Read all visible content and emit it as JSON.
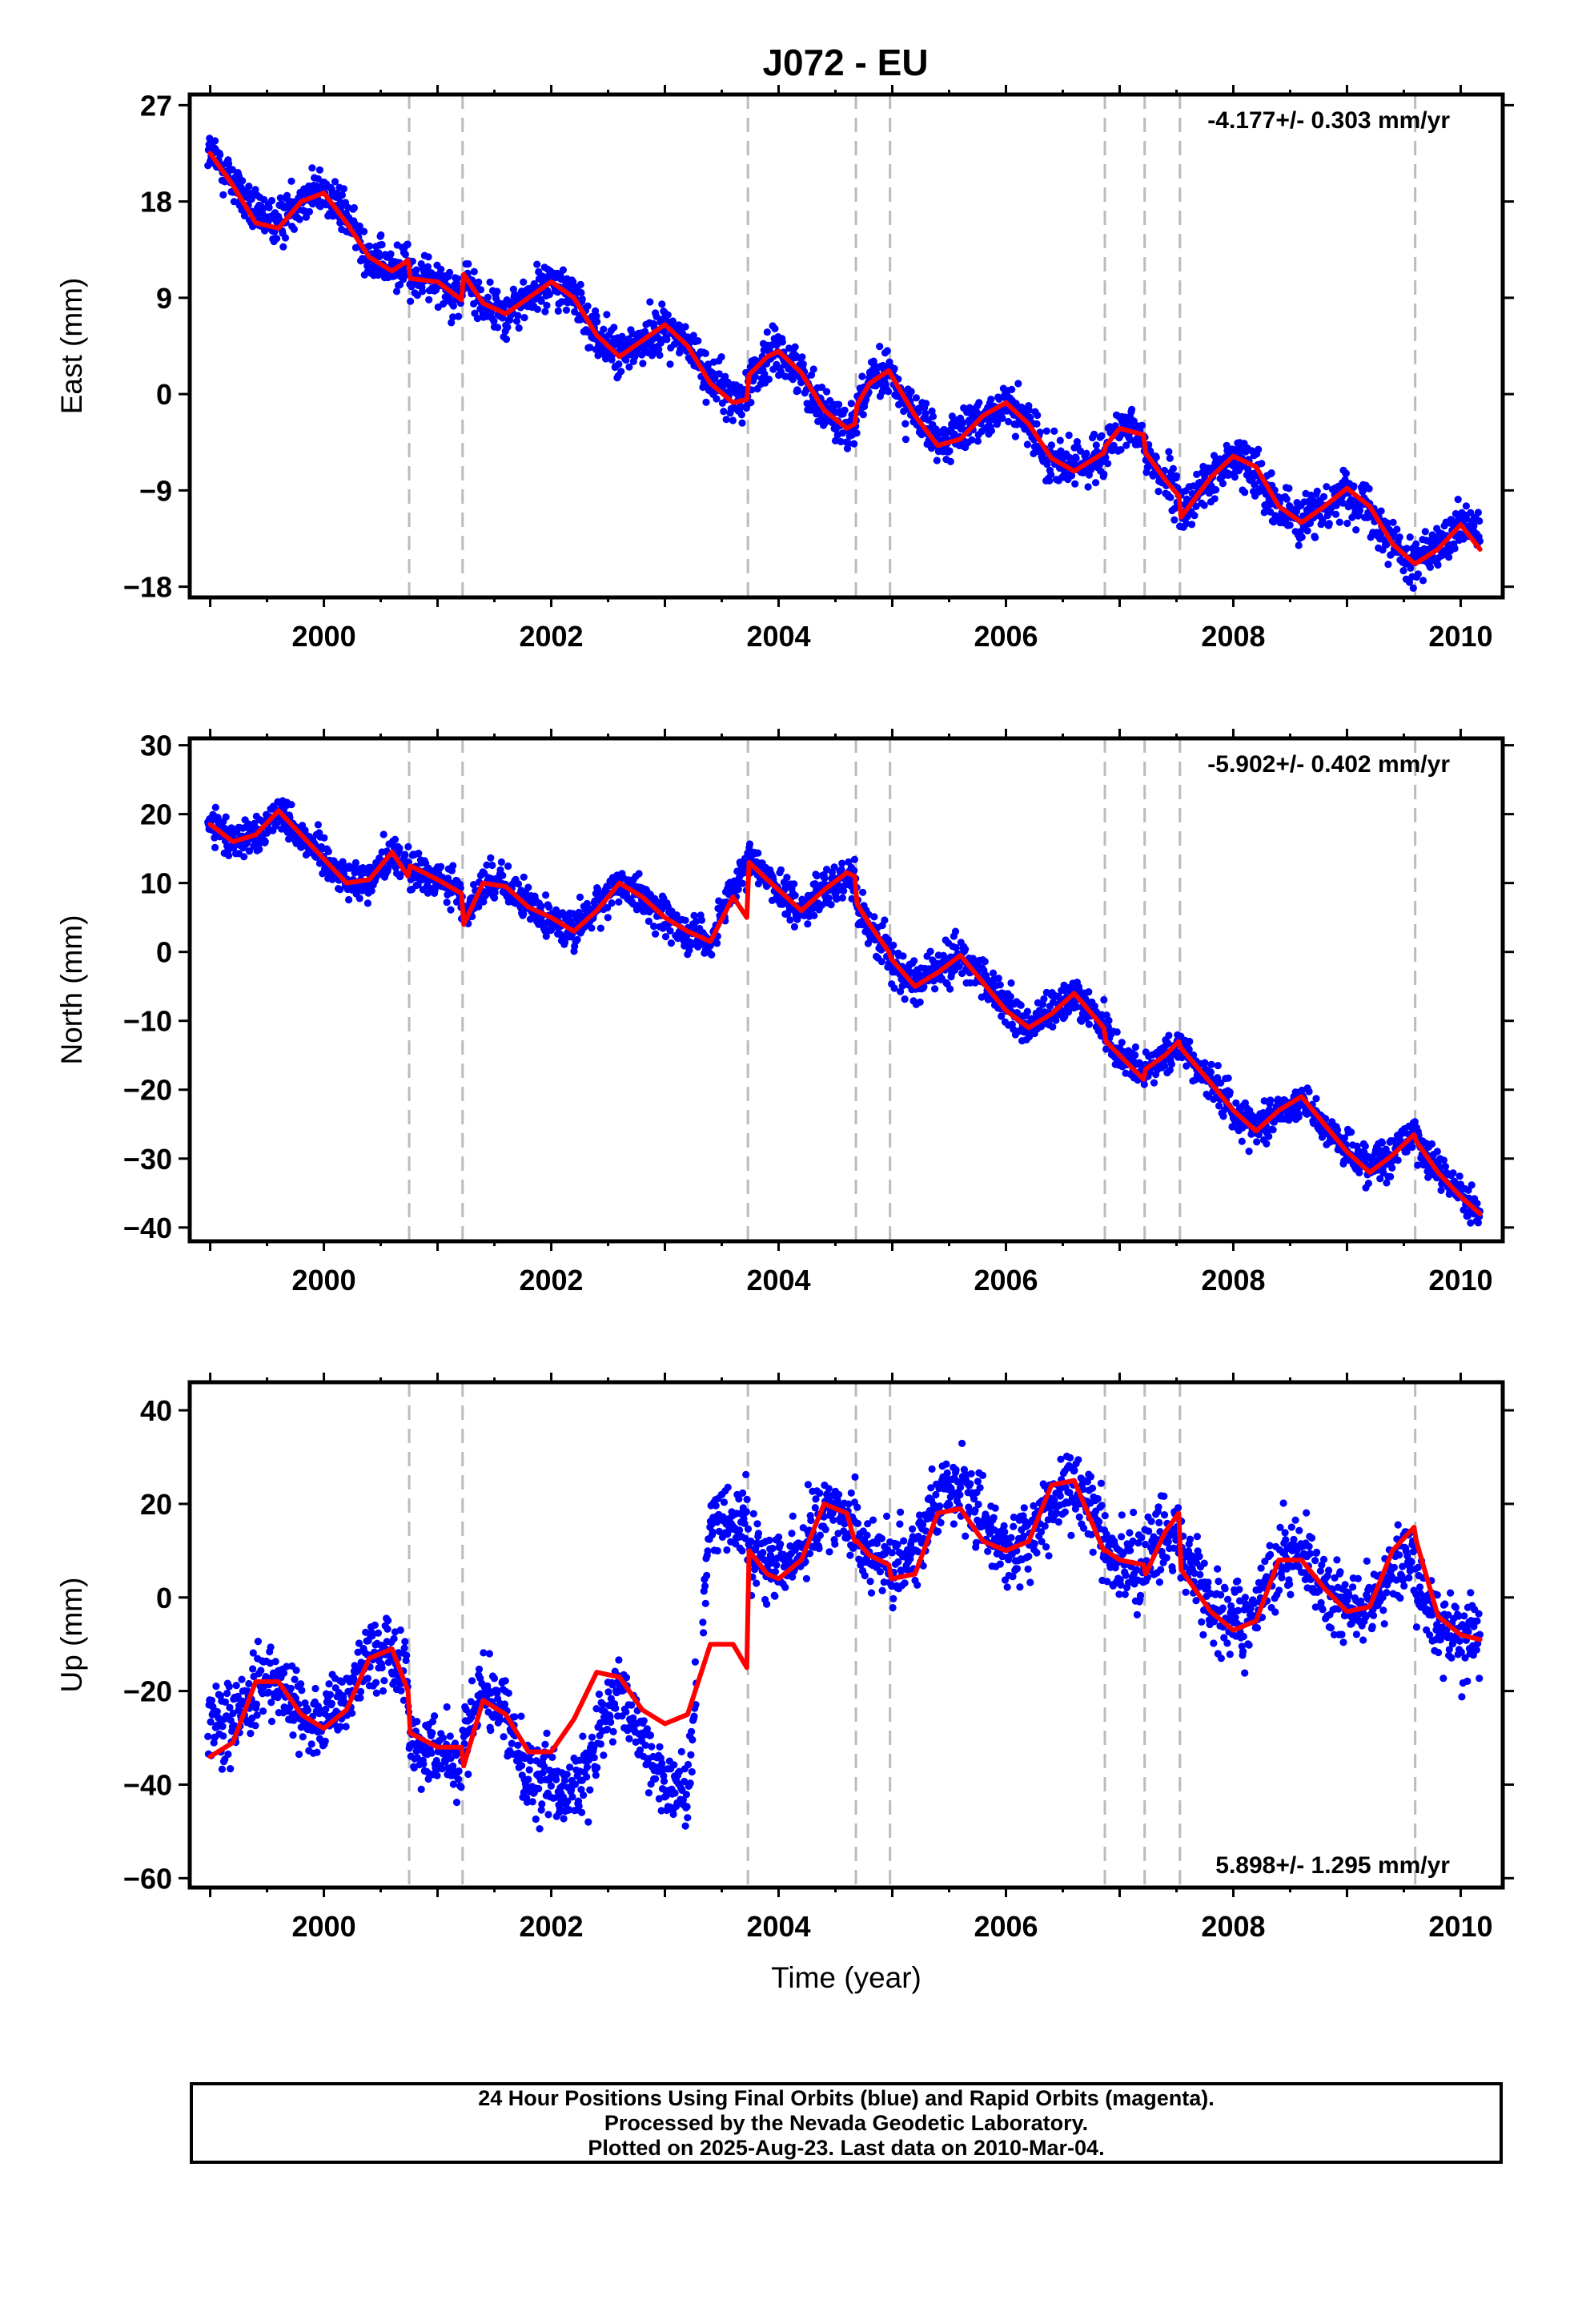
{
  "title": "J072 - EU",
  "colors": {
    "observations": "#0000ff",
    "model": "#ff0000",
    "steps": "#bbbbbb",
    "frame": "#000000"
  },
  "x_label": "Time (year)",
  "chart_data": [
    {
      "type": "scatter",
      "component": "East",
      "ylabel": "East (mm)",
      "rate_label": "-4.177+/- 0.303 mm/yr",
      "rate_position": "top-right",
      "xlim": [
        1998.82,
        2010.37
      ],
      "ylim": [
        -19,
        28
      ],
      "xticks": [
        2000,
        2002,
        2004,
        2006,
        2008,
        2010
      ],
      "yticks": [
        27,
        18,
        9,
        0,
        -9,
        -18
      ],
      "offset_lines": [
        2000.75,
        2001.22,
        2003.73,
        2004.68,
        2004.98,
        2006.87,
        2007.22,
        2007.53,
        2009.6
      ],
      "series": [
        {
          "name": "observations",
          "color": "#0000ff",
          "x": [
            1999.0,
            1999.2,
            1999.4,
            1999.6,
            1999.8,
            2000.0,
            2000.2,
            2000.4,
            2000.6,
            2000.74,
            2000.76,
            2001.0,
            2001.21,
            2001.23,
            2001.4,
            2001.6,
            2001.8,
            2002.0,
            2002.2,
            2002.4,
            2002.6,
            2002.8,
            2003.0,
            2003.2,
            2003.4,
            2003.6,
            2003.72,
            2003.74,
            2003.9,
            2004.0,
            2004.2,
            2004.4,
            2004.6,
            2004.67,
            2004.69,
            2004.8,
            2004.97,
            2004.99,
            2005.2,
            2005.4,
            2005.6,
            2005.8,
            2006.0,
            2006.2,
            2006.4,
            2006.6,
            2006.86,
            2006.88,
            2007.0,
            2007.21,
            2007.23,
            2007.4,
            2007.52,
            2007.54,
            2007.8,
            2008.0,
            2008.2,
            2008.4,
            2008.6,
            2008.8,
            2009.0,
            2009.2,
            2009.4,
            2009.59,
            2009.61,
            2009.8,
            2010.0,
            2010.17
          ],
          "y": [
            22.5,
            20.0,
            16.5,
            16.0,
            18.5,
            19.0,
            16.5,
            13.0,
            11.5,
            12.5,
            10.5,
            11.0,
            9.0,
            11.0,
            8.5,
            7.5,
            9.0,
            10.5,
            9.0,
            5.5,
            3.5,
            5.0,
            6.5,
            4.5,
            1.5,
            -0.5,
            0.0,
            1.5,
            3.5,
            4.0,
            2.0,
            -1.5,
            -3.0,
            -2.5,
            -1.0,
            1.0,
            2.0,
            1.5,
            -2.0,
            -4.5,
            -4.0,
            -2.0,
            -1.0,
            -3.0,
            -6.0,
            -7.0,
            -5.5,
            -5.0,
            -3.5,
            -4.0,
            -5.5,
            -8.0,
            -10.0,
            -11.0,
            -8.0,
            -6.0,
            -7.0,
            -10.5,
            -12.0,
            -10.5,
            -9.0,
            -10.5,
            -14.0,
            -15.5,
            -15.5,
            -14.5,
            -12.5,
            -13.0
          ]
        },
        {
          "name": "model",
          "color": "#ff0000",
          "x": [
            1999.0,
            1999.2,
            1999.4,
            1999.6,
            1999.8,
            2000.0,
            2000.2,
            2000.4,
            2000.6,
            2000.74,
            2000.76,
            2001.0,
            2001.21,
            2001.23,
            2001.4,
            2001.6,
            2001.8,
            2002.0,
            2002.2,
            2002.4,
            2002.6,
            2002.8,
            2003.0,
            2003.2,
            2003.4,
            2003.6,
            2003.72,
            2003.74,
            2003.9,
            2004.0,
            2004.2,
            2004.4,
            2004.6,
            2004.67,
            2004.69,
            2004.8,
            2004.97,
            2004.99,
            2005.2,
            2005.4,
            2005.6,
            2005.8,
            2006.0,
            2006.2,
            2006.4,
            2006.6,
            2006.86,
            2006.88,
            2007.0,
            2007.21,
            2007.23,
            2007.4,
            2007.52,
            2007.54,
            2007.8,
            2008.0,
            2008.2,
            2008.4,
            2008.6,
            2008.8,
            2009.0,
            2009.2,
            2009.4,
            2009.59,
            2009.61,
            2009.8,
            2010.0,
            2010.17
          ],
          "y": [
            22.5,
            19.5,
            16.0,
            15.5,
            18.0,
            18.8,
            16.0,
            12.8,
            11.5,
            12.5,
            10.8,
            10.5,
            8.8,
            11.2,
            8.5,
            7.5,
            9.0,
            10.5,
            9.0,
            5.5,
            3.5,
            5.0,
            6.5,
            4.5,
            1.0,
            -0.8,
            -0.5,
            1.8,
            3.5,
            4.0,
            2.0,
            -1.5,
            -3.2,
            -2.8,
            -1.0,
            1.0,
            2.2,
            1.8,
            -2.0,
            -4.8,
            -4.2,
            -2.0,
            -0.8,
            -2.8,
            -6.0,
            -7.2,
            -5.5,
            -4.8,
            -3.2,
            -3.8,
            -5.5,
            -8.0,
            -9.5,
            -11.5,
            -7.8,
            -5.8,
            -6.8,
            -10.5,
            -12.0,
            -10.5,
            -8.8,
            -10.5,
            -14.0,
            -15.8,
            -15.8,
            -14.5,
            -12.2,
            -14.5
          ]
        }
      ]
    },
    {
      "type": "scatter",
      "component": "North",
      "ylabel": "North (mm)",
      "rate_label": "-5.902+/- 0.402 mm/yr",
      "rate_position": "top-right",
      "xlim": [
        1998.82,
        2010.37
      ],
      "ylim": [
        -42,
        31
      ],
      "xticks": [
        2000,
        2002,
        2004,
        2006,
        2008,
        2010
      ],
      "yticks": [
        30,
        20,
        10,
        0,
        -10,
        -20,
        -30,
        -40
      ],
      "offset_lines": [
        2000.75,
        2001.22,
        2003.73,
        2004.68,
        2004.98,
        2006.87,
        2007.22,
        2007.53,
        2009.6
      ],
      "series": [
        {
          "name": "observations",
          "color": "#0000ff",
          "x": [
            1999.0,
            1999.2,
            1999.4,
            1999.6,
            1999.8,
            2000.0,
            2000.2,
            2000.4,
            2000.6,
            2000.74,
            2000.76,
            2001.0,
            2001.21,
            2001.23,
            2001.4,
            2001.6,
            2001.8,
            2002.0,
            2002.2,
            2002.4,
            2002.6,
            2002.8,
            2003.0,
            2003.2,
            2003.4,
            2003.6,
            2003.72,
            2003.74,
            2003.9,
            2004.0,
            2004.2,
            2004.4,
            2004.6,
            2004.67,
            2004.69,
            2004.8,
            2004.97,
            2004.99,
            2005.2,
            2005.4,
            2005.6,
            2005.8,
            2006.0,
            2006.2,
            2006.4,
            2006.6,
            2006.86,
            2006.88,
            2007.0,
            2007.21,
            2007.23,
            2007.4,
            2007.52,
            2007.54,
            2007.8,
            2008.0,
            2008.2,
            2008.4,
            2008.6,
            2008.8,
            2009.0,
            2009.2,
            2009.4,
            2009.59,
            2009.61,
            2009.8,
            2010.0,
            2010.17
          ],
          "y": [
            18.5,
            16.0,
            17.0,
            20.5,
            17.0,
            14.0,
            10.5,
            10.5,
            14.5,
            12.5,
            11.5,
            10.5,
            8.5,
            5.0,
            10.0,
            9.5,
            6.5,
            5.0,
            3.0,
            6.5,
            10.0,
            8.0,
            5.0,
            3.0,
            1.5,
            9.0,
            12.0,
            13.5,
            11.0,
            9.0,
            6.0,
            9.0,
            11.0,
            11.5,
            7.0,
            3.5,
            0.0,
            -1.5,
            -4.5,
            -2.5,
            -0.5,
            -4.0,
            -8.0,
            -11.0,
            -9.0,
            -6.0,
            -10.5,
            -12.0,
            -14.5,
            -18.0,
            -17.0,
            -15.0,
            -13.5,
            -14.0,
            -18.5,
            -23.0,
            -25.5,
            -23.0,
            -21.5,
            -25.0,
            -28.5,
            -31.0,
            -29.0,
            -26.5,
            -27.5,
            -31.5,
            -35.0,
            -38.5
          ]
        },
        {
          "name": "model",
          "color": "#ff0000",
          "x": [
            1999.0,
            1999.2,
            1999.4,
            1999.6,
            1999.8,
            2000.0,
            2000.2,
            2000.4,
            2000.6,
            2000.74,
            2000.76,
            2001.0,
            2001.21,
            2001.23,
            2001.4,
            2001.6,
            2001.8,
            2002.0,
            2002.2,
            2002.4,
            2002.6,
            2002.8,
            2003.0,
            2003.2,
            2003.4,
            2003.6,
            2003.72,
            2003.74,
            2003.9,
            2004.0,
            2004.2,
            2004.4,
            2004.6,
            2004.67,
            2004.69,
            2004.8,
            2004.97,
            2004.99,
            2005.2,
            2005.4,
            2005.6,
            2005.8,
            2006.0,
            2006.2,
            2006.4,
            2006.6,
            2006.86,
            2006.88,
            2007.0,
            2007.21,
            2007.23,
            2007.4,
            2007.52,
            2007.54,
            2007.8,
            2008.0,
            2008.2,
            2008.4,
            2008.6,
            2008.8,
            2009.0,
            2009.2,
            2009.4,
            2009.59,
            2009.61,
            2009.8,
            2010.0,
            2010.17
          ],
          "y": [
            18.5,
            16.0,
            17.0,
            20.5,
            17.0,
            13.5,
            10.0,
            10.5,
            14.5,
            11.0,
            12.5,
            10.5,
            8.5,
            4.0,
            10.0,
            9.5,
            6.5,
            5.0,
            3.0,
            6.0,
            10.0,
            8.0,
            5.0,
            3.0,
            1.5,
            8.0,
            5.0,
            13.0,
            10.5,
            9.0,
            6.0,
            9.0,
            11.5,
            11.0,
            7.0,
            4.0,
            0.0,
            -1.0,
            -5.0,
            -3.0,
            -0.5,
            -4.5,
            -8.5,
            -11.0,
            -9.0,
            -6.0,
            -11.0,
            -13.0,
            -15.0,
            -18.5,
            -17.0,
            -15.0,
            -13.0,
            -14.0,
            -19.0,
            -23.0,
            -26.0,
            -23.0,
            -21.0,
            -25.0,
            -29.0,
            -32.0,
            -29.5,
            -26.5,
            -27.5,
            -32.0,
            -35.5,
            -38.0
          ]
        }
      ]
    },
    {
      "type": "scatter",
      "component": "Up",
      "ylabel": "Up (mm)",
      "rate_label": "5.898+/- 1.295 mm/yr",
      "rate_position": "bottom-right",
      "xlim": [
        1998.82,
        2010.37
      ],
      "ylim": [
        -62,
        46
      ],
      "xticks": [
        2000,
        2002,
        2004,
        2006,
        2008,
        2010
      ],
      "yticks": [
        40,
        20,
        0,
        -20,
        -40,
        -60
      ],
      "offset_lines": [
        2000.75,
        2001.22,
        2003.73,
        2004.68,
        2004.98,
        2006.87,
        2007.22,
        2007.53,
        2009.6
      ],
      "series": [
        {
          "name": "observations",
          "color": "#0000ff",
          "x": [
            1999.0,
            1999.2,
            1999.4,
            1999.6,
            1999.8,
            2000.0,
            2000.2,
            2000.4,
            2000.6,
            2000.74,
            2000.76,
            2001.0,
            2001.21,
            2001.23,
            2001.4,
            2001.6,
            2001.8,
            2002.0,
            2002.2,
            2002.4,
            2002.6,
            2002.8,
            2003.0,
            2003.2,
            2003.4,
            2003.6,
            2003.72,
            2003.74,
            2003.9,
            2004.0,
            2004.2,
            2004.4,
            2004.6,
            2004.67,
            2004.69,
            2004.8,
            2004.97,
            2004.99,
            2005.2,
            2005.4,
            2005.6,
            2005.8,
            2006.0,
            2006.2,
            2006.4,
            2006.6,
            2006.86,
            2006.88,
            2007.0,
            2007.21,
            2007.23,
            2007.4,
            2007.52,
            2007.54,
            2007.8,
            2008.0,
            2008.2,
            2008.4,
            2008.6,
            2008.8,
            2009.0,
            2009.2,
            2009.4,
            2009.59,
            2009.61,
            2009.8,
            2010.0,
            2010.17
          ],
          "y": [
            -25.0,
            -27.0,
            -20.0,
            -18.0,
            -24.0,
            -28.0,
            -22.0,
            -12.0,
            -12.0,
            -20.0,
            -32.0,
            -33.0,
            -36.0,
            -30.0,
            -20.0,
            -25.0,
            -40.0,
            -38.0,
            -42.0,
            -30.0,
            -20.0,
            -32.0,
            -40.0,
            -42.0,
            17.0,
            18.0,
            15.0,
            10.0,
            8.0,
            8.0,
            10.0,
            18.0,
            18.0,
            13.0,
            12.0,
            10.0,
            8.0,
            5.0,
            10.0,
            20.0,
            25.0,
            16.0,
            10.0,
            12.0,
            20.0,
            25.0,
            15.0,
            10.0,
            8.0,
            5.0,
            8.0,
            15.0,
            15.0,
            8.0,
            -2.0,
            -5.0,
            -2.0,
            8.0,
            9.0,
            2.0,
            -2.0,
            -2.0,
            6.0,
            12.0,
            2.0,
            -6.0,
            -8.0,
            -8.0
          ]
        },
        {
          "name": "model",
          "color": "#ff0000",
          "x": [
            1999.0,
            1999.2,
            1999.4,
            1999.6,
            1999.8,
            2000.0,
            2000.2,
            2000.4,
            2000.6,
            2000.74,
            2000.76,
            2001.0,
            2001.21,
            2001.23,
            2001.4,
            2001.6,
            2001.8,
            2002.0,
            2002.2,
            2002.4,
            2002.6,
            2002.8,
            2003.0,
            2003.2,
            2003.4,
            2003.6,
            2003.72,
            2003.74,
            2003.9,
            2004.0,
            2004.2,
            2004.4,
            2004.6,
            2004.67,
            2004.69,
            2004.8,
            2004.97,
            2004.99,
            2005.2,
            2005.4,
            2005.6,
            2005.8,
            2006.0,
            2006.2,
            2006.4,
            2006.6,
            2006.86,
            2006.88,
            2007.0,
            2007.21,
            2007.23,
            2007.4,
            2007.52,
            2007.54,
            2007.8,
            2008.0,
            2008.2,
            2008.4,
            2008.6,
            2008.8,
            2009.0,
            2009.2,
            2009.4,
            2009.59,
            2009.61,
            2009.8,
            2010.0,
            2010.17
          ],
          "y": [
            -34.0,
            -31.0,
            -18.0,
            -18.0,
            -25.0,
            -28.0,
            -24.0,
            -13.0,
            -11.0,
            -20.0,
            -29.0,
            -32.0,
            -32.0,
            -36.0,
            -22.0,
            -25.0,
            -33.0,
            -33.0,
            -26.0,
            -16.0,
            -17.0,
            -24.0,
            -27.0,
            -25.0,
            -10.0,
            -10.0,
            -15.0,
            10.0,
            5.0,
            4.0,
            8.0,
            20.0,
            18.0,
            12.0,
            12.0,
            9.0,
            7.0,
            4.0,
            5.0,
            18.0,
            19.0,
            12.0,
            10.0,
            12.0,
            24.0,
            25.0,
            10.0,
            10.0,
            8.0,
            7.0,
            5.0,
            14.0,
            18.0,
            6.0,
            -3.0,
            -7.0,
            -5.0,
            8.0,
            8.0,
            2.0,
            -3.0,
            -2.0,
            10.0,
            15.0,
            12.0,
            -4.0,
            -8.0,
            -9.0
          ]
        }
      ]
    }
  ],
  "footer": {
    "line1": "24 Hour Positions Using Final Orbits (blue) and Rapid Orbits (magenta).",
    "line2": "Processed by the Nevada Geodetic Laboratory.",
    "line3": "Plotted on 2025-Aug-23. Last data on 2010-Mar-04."
  }
}
